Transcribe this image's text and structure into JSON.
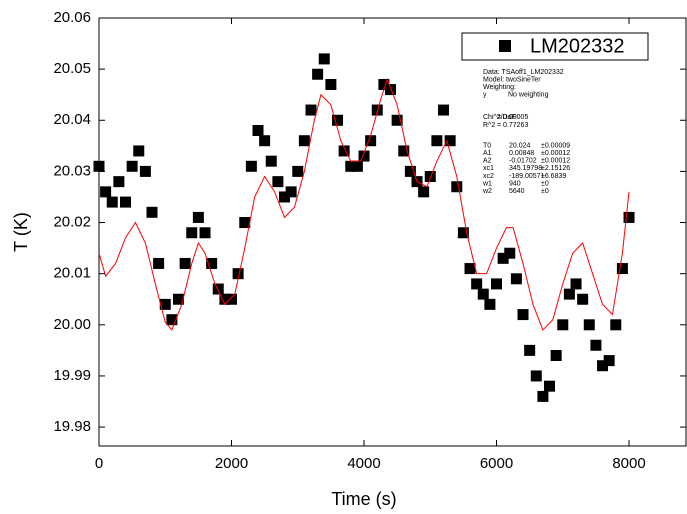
{
  "chart_data": {
    "type": "scatter",
    "x_label": "Time (s)",
    "y_label": "T (K)",
    "xlim": [
      0,
      8860
    ],
    "ylim": [
      19.9763,
      20.06
    ],
    "xticks": [
      0,
      2000,
      4000,
      6000,
      8000
    ],
    "yticks": [
      19.98,
      19.99,
      {
        "value": 20,
        "label": "20.00"
      },
      20.01,
      20.02,
      20.03,
      20.04,
      20.05,
      20.06
    ],
    "legend_position": "upper right",
    "series": [
      {
        "name": "LM202332",
        "type": "scatter",
        "marker": "square",
        "color": "#000000",
        "x": [
          0,
          100,
          200,
          300,
          400,
          500,
          600,
          700,
          800,
          900,
          1000,
          1100,
          1200,
          1300,
          1400,
          1500,
          1600,
          1700,
          1800,
          1900,
          2000,
          2100,
          2200,
          2300,
          2400,
          2500,
          2600,
          2700,
          2800,
          2900,
          3000,
          3100,
          3200,
          3300,
          3400,
          3500,
          3600,
          3700,
          3800,
          3900,
          4000,
          4100,
          4200,
          4300,
          4400,
          4500,
          4600,
          4700,
          4800,
          4900,
          5000,
          5100,
          5200,
          5300,
          5400,
          5500,
          5600,
          5700,
          5800,
          5900,
          6000,
          6100,
          6200,
          6300,
          6400,
          6500,
          6600,
          6700,
          6800,
          6900,
          7000,
          7100,
          7200,
          7300,
          7400,
          7500,
          7600,
          7700,
          7800,
          7900,
          8000
        ],
        "values": [
          20.031,
          20.026,
          20.024,
          20.028,
          20.024,
          20.031,
          20.034,
          20.03,
          20.022,
          20.012,
          20.004,
          20.001,
          20.005,
          20.012,
          20.018,
          20.021,
          20.018,
          20.012,
          20.007,
          20.005,
          20.005,
          20.01,
          20.02,
          20.031,
          20.038,
          20.036,
          20.032,
          20.028,
          20.025,
          20.026,
          20.03,
          20.036,
          20.042,
          20.049,
          20.052,
          20.047,
          20.04,
          20.034,
          20.031,
          20.031,
          20.033,
          20.036,
          20.042,
          20.047,
          20.046,
          20.04,
          20.034,
          20.03,
          20.028,
          20.026,
          20.029,
          20.036,
          20.042,
          20.036,
          20.027,
          20.018,
          20.011,
          20.008,
          20.006,
          20.004,
          20.008,
          20.013,
          20.014,
          20.009,
          20.002,
          19.995,
          19.99,
          19.986,
          19.988,
          19.994,
          20.0,
          20.006,
          20.008,
          20.005,
          20.0,
          19.996,
          19.992,
          19.993,
          20.0,
          20.011,
          20.021
        ]
      },
      {
        "type": "line",
        "color": "#ff0000",
        "x": [
          0,
          100,
          250,
          400,
          550,
          700,
          850,
          1000,
          1100,
          1250,
          1400,
          1500,
          1600,
          1750,
          1900,
          2050,
          2200,
          2350,
          2500,
          2650,
          2800,
          2950,
          3100,
          3250,
          3350,
          3500,
          3650,
          3800,
          3950,
          4100,
          4250,
          4350,
          4500,
          4650,
          4800,
          4950,
          5100,
          5250,
          5400,
          5550,
          5700,
          5850,
          6000,
          6150,
          6250,
          6400,
          6550,
          6700,
          6850,
          7000,
          7150,
          7300,
          7450,
          7600,
          7750,
          7900,
          8000
        ],
        "values": [
          20.014,
          20.0095,
          20.012,
          20.017,
          20.02,
          20.016,
          20.008,
          20.0005,
          19.999,
          20.004,
          20.012,
          20.016,
          20.014,
          20.008,
          20.004,
          20.006,
          20.015,
          20.025,
          20.029,
          20.026,
          20.021,
          20.023,
          20.03,
          20.04,
          20.045,
          20.043,
          20.036,
          20.032,
          20.032,
          20.037,
          20.044,
          20.048,
          20.043,
          20.034,
          20.028,
          20.027,
          20.032,
          20.036,
          20.029,
          20.018,
          20.01,
          20.01,
          20.015,
          20.019,
          20.019,
          20.012,
          20.004,
          19.999,
          20.001,
          20.008,
          20.014,
          20.016,
          20.01,
          20.004,
          20.002,
          20.014,
          20.026
        ]
      }
    ],
    "fit_info": {
      "header": [
        "Data: TSAoff1_LM202332",
        "Model: twoSineTer",
        "Weighting:"
      ],
      "weighting": [
        [
          "y",
          "No weighting"
        ]
      ],
      "stats": [
        [
          "Chi^2/DoF",
          "= 0.00005"
        ],
        [
          "R^2",
          "= 0.77263"
        ]
      ],
      "params": [
        [
          "T0",
          "20.024",
          "±0.00009"
        ],
        [
          "A1",
          "0.00848",
          "±0.00012"
        ],
        [
          "A2",
          "-0.01702",
          "±0.00012"
        ],
        [
          "xc1",
          "345.19798",
          "±2.15126"
        ],
        [
          "xc2",
          "-189.00571",
          "±6.6839"
        ],
        [
          "w1",
          "940",
          "±0"
        ],
        [
          "w2",
          "5640",
          "±0"
        ]
      ]
    }
  }
}
